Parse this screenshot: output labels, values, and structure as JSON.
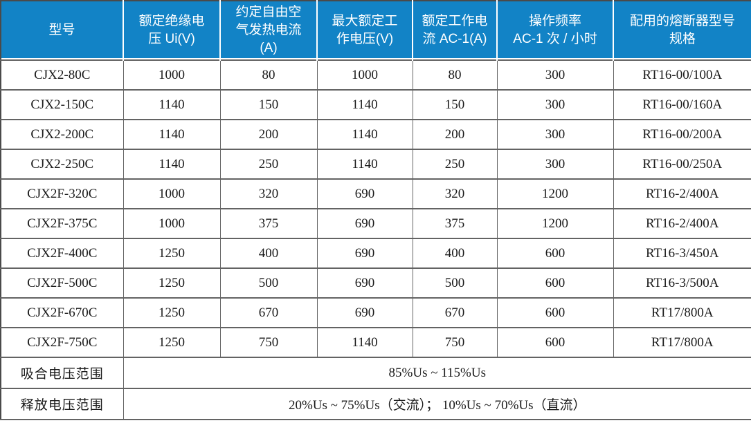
{
  "table": {
    "columns": [
      {
        "label": "型号"
      },
      {
        "label": "额定绝缘电\n压 Ui(V)"
      },
      {
        "label": "约定自由空\n气发热电流\n(A)"
      },
      {
        "label": "最大额定工\n作电压(V)"
      },
      {
        "label": "额定工作电\n流 AC-1(A)"
      },
      {
        "label": "操作频率\nAC-1 次 / 小时"
      },
      {
        "label": "配用的熔断器型号\n规格"
      }
    ],
    "rows": [
      [
        "CJX2-80C",
        "1000",
        "80",
        "1000",
        "80",
        "300",
        "RT16-00/100A"
      ],
      [
        "CJX2-150C",
        "1140",
        "150",
        "1140",
        "150",
        "300",
        "RT16-00/160A"
      ],
      [
        "CJX2-200C",
        "1140",
        "200",
        "1140",
        "200",
        "300",
        "RT16-00/200A"
      ],
      [
        "CJX2-250C",
        "1140",
        "250",
        "1140",
        "250",
        "300",
        "RT16-00/250A"
      ],
      [
        "CJX2F-320C",
        "1000",
        "320",
        "690",
        "320",
        "1200",
        "RT16-2/400A"
      ],
      [
        "CJX2F-375C",
        "1000",
        "375",
        "690",
        "375",
        "1200",
        "RT16-2/400A"
      ],
      [
        "CJX2F-400C",
        "1250",
        "400",
        "690",
        "400",
        "600",
        "RT16-3/450A"
      ],
      [
        "CJX2F-500C",
        "1250",
        "500",
        "690",
        "500",
        "600",
        "RT16-3/500A"
      ],
      [
        "CJX2F-670C",
        "1250",
        "670",
        "690",
        "670",
        "600",
        "RT17/800A"
      ],
      [
        "CJX2F-750C",
        "1250",
        "750",
        "1140",
        "750",
        "600",
        "RT17/800A"
      ]
    ],
    "footer": [
      {
        "label": "吸合电压范围",
        "value": "85%Us ~ 115%Us"
      },
      {
        "label": "释放电压范围",
        "value": "20%Us ~ 75%Us（交流）； 10%Us ~ 70%Us（直流）"
      }
    ],
    "colors": {
      "header_bg": "#1283c6",
      "header_text": "#ffffff",
      "grid": "#636363",
      "outer_border": "#4a4a4a",
      "body_bg": "#ffffff",
      "body_text": "#1a1a1a"
    }
  }
}
